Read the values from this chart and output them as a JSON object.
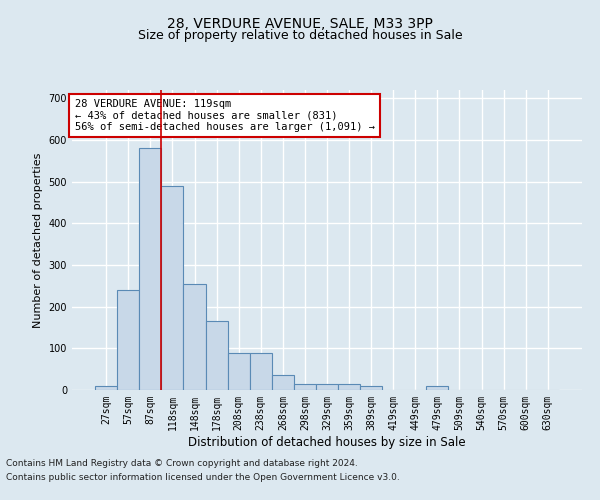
{
  "title": "28, VERDURE AVENUE, SALE, M33 3PP",
  "subtitle": "Size of property relative to detached houses in Sale",
  "xlabel": "Distribution of detached houses by size in Sale",
  "ylabel": "Number of detached properties",
  "bins": [
    "27sqm",
    "57sqm",
    "87sqm",
    "118sqm",
    "148sqm",
    "178sqm",
    "208sqm",
    "238sqm",
    "268sqm",
    "298sqm",
    "329sqm",
    "359sqm",
    "389sqm",
    "419sqm",
    "449sqm",
    "479sqm",
    "509sqm",
    "540sqm",
    "570sqm",
    "600sqm",
    "630sqm"
  ],
  "values": [
    10,
    240,
    580,
    490,
    255,
    165,
    90,
    90,
    35,
    15,
    15,
    15,
    10,
    0,
    0,
    10,
    0,
    0,
    0,
    0,
    0
  ],
  "bar_color": "#c8d8e8",
  "bar_edge_color": "#5a8ab5",
  "bar_linewidth": 0.8,
  "vline_index": 2.5,
  "vline_color": "#cc0000",
  "ylim": [
    0,
    720
  ],
  "yticks": [
    0,
    100,
    200,
    300,
    400,
    500,
    600,
    700
  ],
  "annotation_text": "28 VERDURE AVENUE: 119sqm\n← 43% of detached houses are smaller (831)\n56% of semi-detached houses are larger (1,091) →",
  "annotation_box_color": "#ffffff",
  "annotation_box_edgecolor": "#cc0000",
  "footnote1": "Contains HM Land Registry data © Crown copyright and database right 2024.",
  "footnote2": "Contains public sector information licensed under the Open Government Licence v3.0.",
  "bg_color": "#dce8f0",
  "grid_color": "#ffffff",
  "title_fontsize": 10,
  "xlabel_fontsize": 8.5,
  "ylabel_fontsize": 8,
  "tick_fontsize": 7,
  "ann_fontsize": 7.5,
  "footnote_fontsize": 6.5
}
